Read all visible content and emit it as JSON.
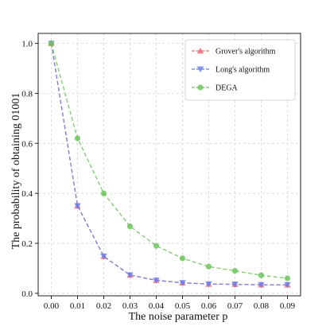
{
  "chart_data": {
    "type": "line",
    "xlabel": "The noise parameter p",
    "ylabel": "The probability of obtaining 01001",
    "x": [
      0.0,
      0.01,
      0.02,
      0.03,
      0.04,
      0.05,
      0.06,
      0.07,
      0.08,
      0.09
    ],
    "x_tick_labels": [
      "0.00",
      "0.01",
      "0.02",
      "0.03",
      "0.04",
      "0.05",
      "0.06",
      "0.07",
      "0.08",
      "0.09"
    ],
    "y_ticks": [
      0.0,
      0.2,
      0.4,
      0.6,
      0.8,
      1.0
    ],
    "y_tick_labels": [
      "0.0",
      "0.2",
      "0.4",
      "0.6",
      "0.8",
      "1.0"
    ],
    "xlim": [
      -0.005,
      0.095
    ],
    "ylim": [
      -0.01,
      1.04
    ],
    "grid": true,
    "legend_position": "top-right",
    "series": [
      {
        "name": "Grover's algorithm",
        "color": "#f26b6b",
        "marker": "triangle-up",
        "values": [
          1.0,
          0.35,
          0.148,
          0.073,
          0.052,
          0.042,
          0.037,
          0.036,
          0.034,
          0.034
        ]
      },
      {
        "name": "Long's algorithm",
        "color": "#6b7ff2",
        "marker": "triangle-down",
        "values": [
          1.0,
          0.35,
          0.148,
          0.073,
          0.052,
          0.042,
          0.037,
          0.036,
          0.034,
          0.034
        ]
      },
      {
        "name": "DEGA",
        "color": "#6cc65a",
        "marker": "circle",
        "values": [
          1.0,
          0.62,
          0.4,
          0.268,
          0.19,
          0.14,
          0.107,
          0.09,
          0.072,
          0.06
        ]
      }
    ]
  }
}
